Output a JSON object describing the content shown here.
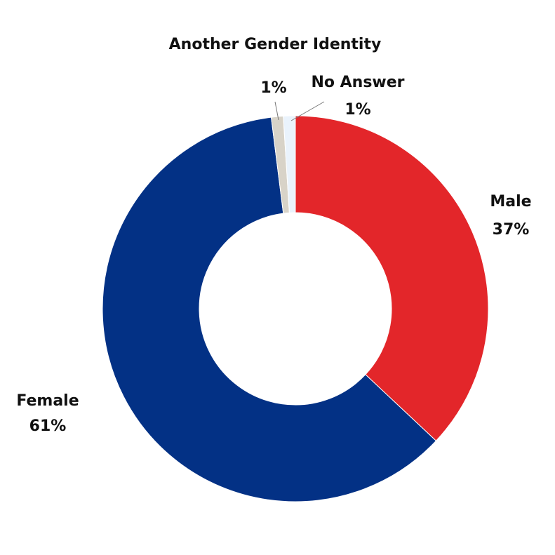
{
  "chart_data": {
    "type": "donut",
    "categories": [
      "Male",
      "Female",
      "Another Gender Identity",
      "No Answer"
    ],
    "values": [
      37,
      61,
      1,
      1
    ],
    "value_labels": [
      "37%",
      "61%",
      "1%",
      "1%"
    ],
    "colors": [
      "#e3262a",
      "#033185",
      "#d8d3c8",
      "#eaf3fc"
    ]
  }
}
